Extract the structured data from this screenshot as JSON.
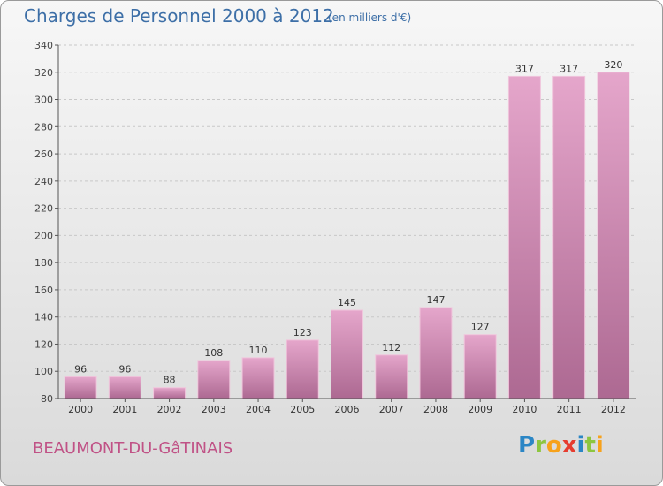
{
  "title": "Charges de Personnel 2000 à 2012",
  "subtitle": "(en milliers d'€)",
  "location": "BEAUMONT-DU-GâTINAIS",
  "logo": {
    "letters": [
      "P",
      "r",
      "o",
      "x",
      "i",
      "t",
      "i"
    ],
    "colors": [
      "#2b86c5",
      "#8dc63f",
      "#f7a21b",
      "#e63c2f",
      "#2b86c5",
      "#8dc63f",
      "#f7a21b"
    ]
  },
  "colors": {
    "bar": "#d47fae",
    "title": "#3d6fa7",
    "location": "#c05286"
  },
  "chart_data": {
    "type": "bar",
    "title": "Charges de Personnel 2000 à 2012",
    "subtitle": "(en milliers d'€)",
    "categories": [
      "2000",
      "2001",
      "2002",
      "2003",
      "2004",
      "2005",
      "2006",
      "2007",
      "2008",
      "2009",
      "2010",
      "2011",
      "2012"
    ],
    "values": [
      96,
      96,
      88,
      108,
      110,
      123,
      145,
      112,
      147,
      127,
      317,
      317,
      320
    ],
    "ylim": [
      80,
      340
    ],
    "yticks": [
      80,
      100,
      120,
      140,
      160,
      180,
      200,
      220,
      240,
      260,
      280,
      300,
      320,
      340
    ],
    "xlabel": "",
    "ylabel": "",
    "grid": true
  }
}
